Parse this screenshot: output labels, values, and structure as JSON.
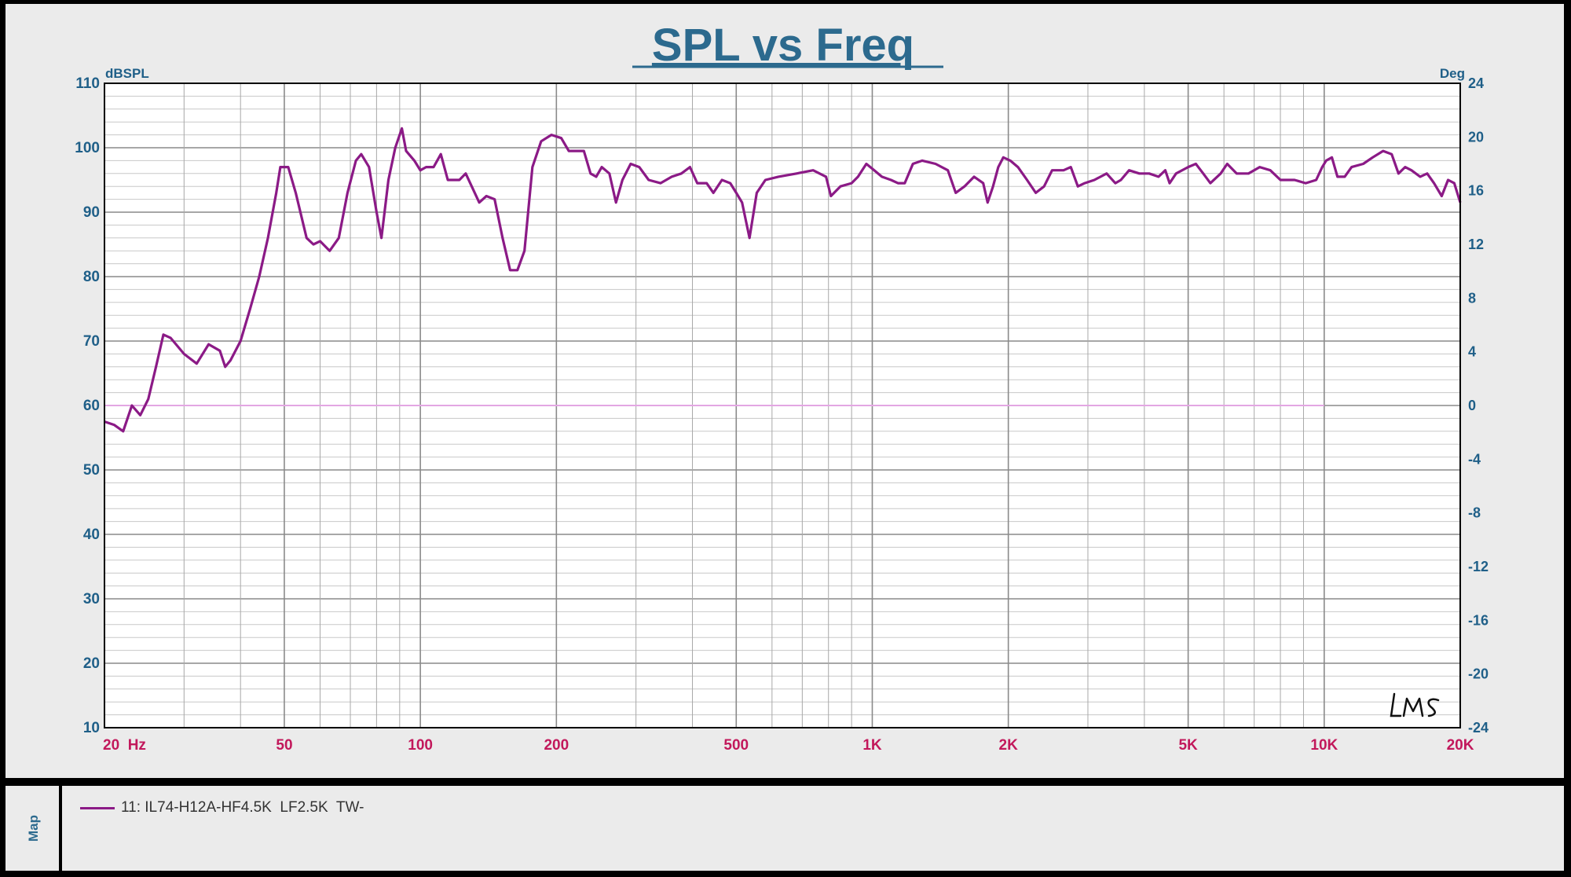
{
  "colors": {
    "trace": "#8b1a86",
    "title": "#2c6a8e",
    "left_axis": "#1f5f88",
    "right_axis": "#1f5f88",
    "x_axis": "#c2185b",
    "phase_ref": "#e3a6e3",
    "grid": "#9a9a9a",
    "plot_bg": "#ffffff"
  },
  "chart_data": {
    "type": "line",
    "title": "SPL vs Freq",
    "ylabel": "dBSPL",
    "y2label": "Deg",
    "xscale": "log",
    "xlim": [
      20,
      20000
    ],
    "ylim": [
      10,
      110
    ],
    "y2lim": [
      -24,
      24
    ],
    "grid": true,
    "legend_position": "bottom",
    "x_ticks": [
      {
        "value": 20,
        "label": "20  Hz"
      },
      {
        "value": 50,
        "label": "50"
      },
      {
        "value": 100,
        "label": "100"
      },
      {
        "value": 200,
        "label": "200"
      },
      {
        "value": 500,
        "label": "500"
      },
      {
        "value": 1000,
        "label": "1K"
      },
      {
        "value": 2000,
        "label": "2K"
      },
      {
        "value": 5000,
        "label": "5K"
      },
      {
        "value": 10000,
        "label": "10K"
      },
      {
        "value": 20000,
        "label": "20K"
      }
    ],
    "y_ticks": [
      {
        "value": 10,
        "label": "10"
      },
      {
        "value": 20,
        "label": "20"
      },
      {
        "value": 30,
        "label": "30"
      },
      {
        "value": 40,
        "label": "40"
      },
      {
        "value": 50,
        "label": "50"
      },
      {
        "value": 60,
        "label": "60"
      },
      {
        "value": 70,
        "label": "70"
      },
      {
        "value": 80,
        "label": "80"
      },
      {
        "value": 90,
        "label": "90"
      },
      {
        "value": 100,
        "label": "100"
      },
      {
        "value": 110,
        "label": "110"
      }
    ],
    "y2_ticks": [
      {
        "value": -24,
        "label": "-24"
      },
      {
        "value": -20,
        "label": "-20"
      },
      {
        "value": -16,
        "label": "-16"
      },
      {
        "value": -12,
        "label": "-12"
      },
      {
        "value": -8,
        "label": "-8"
      },
      {
        "value": -4,
        "label": "-4"
      },
      {
        "value": 0,
        "label": "0"
      },
      {
        "value": 4,
        "label": "4"
      },
      {
        "value": 8,
        "label": "8"
      },
      {
        "value": 12,
        "label": "12"
      },
      {
        "value": 16,
        "label": "16"
      },
      {
        "value": 20,
        "label": "20"
      },
      {
        "value": 24,
        "label": "24"
      }
    ],
    "series": [
      {
        "name": "11: IL74-H12A-HF4.5K  LF2.5K  TW-",
        "axis": "left",
        "points": [
          [
            20,
            57.5
          ],
          [
            21,
            57
          ],
          [
            22,
            56
          ],
          [
            23,
            60
          ],
          [
            24,
            58.5
          ],
          [
            25,
            61
          ],
          [
            26,
            66
          ],
          [
            27,
            71
          ],
          [
            28,
            70.5
          ],
          [
            30,
            68
          ],
          [
            32,
            66.5
          ],
          [
            34,
            69.5
          ],
          [
            36,
            68.5
          ],
          [
            37,
            66
          ],
          [
            38,
            67
          ],
          [
            40,
            70
          ],
          [
            42,
            75
          ],
          [
            44,
            80
          ],
          [
            46,
            86
          ],
          [
            48,
            93
          ],
          [
            49,
            97
          ],
          [
            51,
            97
          ],
          [
            53,
            93
          ],
          [
            56,
            86
          ],
          [
            58,
            85
          ],
          [
            60,
            85.5
          ],
          [
            63,
            84
          ],
          [
            66,
            86
          ],
          [
            69,
            93
          ],
          [
            72,
            98
          ],
          [
            74,
            99
          ],
          [
            77,
            97
          ],
          [
            80,
            90
          ],
          [
            82,
            86
          ],
          [
            85,
            95
          ],
          [
            88,
            100
          ],
          [
            91,
            103
          ],
          [
            93,
            99.5
          ],
          [
            97,
            98
          ],
          [
            100,
            96.5
          ],
          [
            103,
            97
          ],
          [
            107,
            97
          ],
          [
            111,
            99
          ],
          [
            115,
            95
          ],
          [
            122,
            95
          ],
          [
            126,
            96
          ],
          [
            135,
            91.5
          ],
          [
            140,
            92.5
          ],
          [
            146,
            92
          ],
          [
            152,
            86
          ],
          [
            158,
            81
          ],
          [
            164,
            81
          ],
          [
            170,
            84
          ],
          [
            177,
            97
          ],
          [
            185,
            101
          ],
          [
            195,
            102
          ],
          [
            205,
            101.5
          ],
          [
            213,
            99.5
          ],
          [
            220,
            99.5
          ],
          [
            230,
            99.5
          ],
          [
            238,
            96
          ],
          [
            245,
            95.5
          ],
          [
            252,
            97
          ],
          [
            262,
            96
          ],
          [
            271,
            91.5
          ],
          [
            280,
            95
          ],
          [
            292,
            97.5
          ],
          [
            305,
            97
          ],
          [
            320,
            95
          ],
          [
            340,
            94.5
          ],
          [
            360,
            95.5
          ],
          [
            378,
            96
          ],
          [
            395,
            97
          ],
          [
            410,
            94.5
          ],
          [
            430,
            94.5
          ],
          [
            445,
            93
          ],
          [
            465,
            95
          ],
          [
            485,
            94.5
          ],
          [
            500,
            93
          ],
          [
            515,
            91.5
          ],
          [
            535,
            86
          ],
          [
            555,
            93
          ],
          [
            580,
            95
          ],
          [
            620,
            95.5
          ],
          [
            680,
            96
          ],
          [
            740,
            96.5
          ],
          [
            790,
            95.5
          ],
          [
            810,
            92.5
          ],
          [
            850,
            94
          ],
          [
            900,
            94.5
          ],
          [
            930,
            95.5
          ],
          [
            970,
            97.5
          ],
          [
            1010,
            96.5
          ],
          [
            1050,
            95.5
          ],
          [
            1100,
            95
          ],
          [
            1140,
            94.5
          ],
          [
            1180,
            94.5
          ],
          [
            1230,
            97.5
          ],
          [
            1290,
            98
          ],
          [
            1380,
            97.5
          ],
          [
            1470,
            96.5
          ],
          [
            1530,
            93
          ],
          [
            1600,
            94
          ],
          [
            1680,
            95.5
          ],
          [
            1760,
            94.5
          ],
          [
            1800,
            91.5
          ],
          [
            1850,
            94
          ],
          [
            1900,
            97
          ],
          [
            1950,
            98.5
          ],
          [
            2020,
            98
          ],
          [
            2100,
            97
          ],
          [
            2200,
            95
          ],
          [
            2300,
            93
          ],
          [
            2400,
            94
          ],
          [
            2500,
            96.5
          ],
          [
            2650,
            96.5
          ],
          [
            2750,
            97
          ],
          [
            2850,
            94
          ],
          [
            2950,
            94.5
          ],
          [
            3100,
            95
          ],
          [
            3300,
            96
          ],
          [
            3450,
            94.5
          ],
          [
            3550,
            95
          ],
          [
            3700,
            96.5
          ],
          [
            3900,
            96
          ],
          [
            4100,
            96
          ],
          [
            4300,
            95.5
          ],
          [
            4450,
            96.5
          ],
          [
            4550,
            94.5
          ],
          [
            4700,
            96
          ],
          [
            5000,
            97
          ],
          [
            5200,
            97.5
          ],
          [
            5400,
            96
          ],
          [
            5600,
            94.5
          ],
          [
            5900,
            96
          ],
          [
            6100,
            97.5
          ],
          [
            6400,
            96
          ],
          [
            6800,
            96
          ],
          [
            7200,
            97
          ],
          [
            7600,
            96.5
          ],
          [
            8000,
            95
          ],
          [
            8600,
            95
          ],
          [
            9100,
            94.5
          ],
          [
            9600,
            95
          ],
          [
            9900,
            97
          ],
          [
            10100,
            98
          ],
          [
            10400,
            98.5
          ],
          [
            10700,
            95.5
          ],
          [
            11100,
            95.5
          ],
          [
            11500,
            97
          ],
          [
            12200,
            97.5
          ],
          [
            12800,
            98.5
          ],
          [
            13500,
            99.5
          ],
          [
            14100,
            99
          ],
          [
            14600,
            96
          ],
          [
            15100,
            97
          ],
          [
            15600,
            96.5
          ],
          [
            16300,
            95.5
          ],
          [
            16900,
            96
          ],
          [
            17500,
            94.5
          ],
          [
            18200,
            92.5
          ],
          [
            18800,
            95
          ],
          [
            19400,
            94.5
          ],
          [
            20000,
            91.5
          ]
        ]
      }
    ],
    "reference_line": {
      "axis": "right",
      "value": 0,
      "x_end": 10000
    }
  },
  "legend": {
    "tab_label": "Map",
    "entries": [
      {
        "label": "11: IL74-H12A-HF4.5K  LF2.5K  TW-"
      }
    ]
  },
  "logo_text": "LMS"
}
